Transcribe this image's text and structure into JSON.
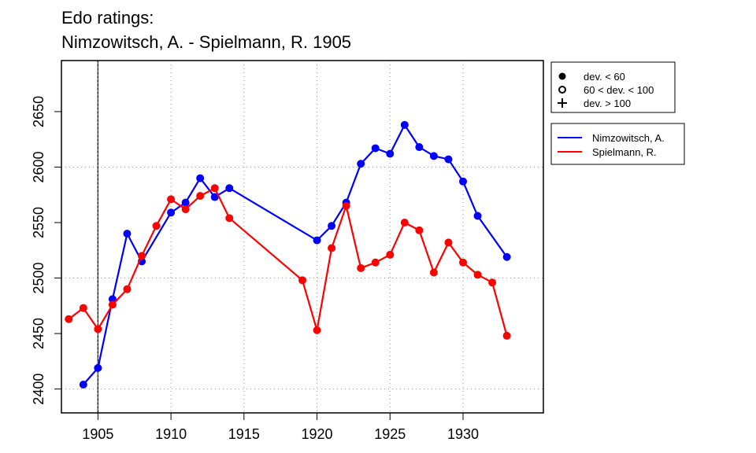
{
  "title": {
    "line1": "Edo ratings:",
    "line2": "Nimzowitsch, A. - Spielmann, R. 1905"
  },
  "colors": {
    "nimzowitsch": "#0000ff",
    "spielmann": "#ff0000",
    "grid": "#999999",
    "axis": "#000000"
  },
  "chart_data": {
    "type": "line",
    "title": "Edo ratings: Nimzowitsch, A. - Spielmann, R. 1905",
    "xlabel": "",
    "ylabel": "",
    "xlim": [
      1902.5,
      1935.5
    ],
    "ylim": [
      2378.5,
      2696
    ],
    "x_ticks": [
      1905,
      1910,
      1915,
      1920,
      1925,
      1930
    ],
    "y_ticks": [
      2400,
      2450,
      2500,
      2550,
      2600,
      2650
    ],
    "grid_x": [
      1910,
      1915,
      1920,
      1925,
      1930
    ],
    "grid_y": [
      2400,
      2500,
      2600
    ],
    "event_year": 1905,
    "series": [
      {
        "name": "Nimzowitsch, A.",
        "color": "#0000ff",
        "x": [
          1904,
          1905,
          1906,
          1907,
          1908,
          1910,
          1911,
          1912,
          1913,
          1914,
          1920,
          1921,
          1922,
          1923,
          1924,
          1925,
          1926,
          1927,
          1928,
          1929,
          1930,
          1931,
          1933
        ],
        "values": [
          2404,
          2419,
          2481,
          2540,
          2515,
          2559,
          2568,
          2590,
          2573,
          2581,
          2534,
          2547,
          2568,
          2603,
          2617,
          2612,
          2638,
          2618,
          2610,
          2607,
          2587,
          2556,
          2519
        ]
      },
      {
        "name": "Spielmann, R.",
        "color": "#ff0000",
        "x": [
          1903,
          1904,
          1905,
          1906,
          1907,
          1908,
          1909,
          1910,
          1911,
          1912,
          1913,
          1914,
          1919,
          1920,
          1921,
          1922,
          1923,
          1924,
          1925,
          1926,
          1927,
          1928,
          1929,
          1930,
          1931,
          1932,
          1933
        ],
        "values": [
          2463,
          2473,
          2454,
          2476,
          2490,
          2520,
          2547,
          2571,
          2562,
          2574,
          2581,
          2554,
          2498,
          2453,
          2527,
          2565,
          2509,
          2514,
          2521,
          2550,
          2543,
          2505,
          2532,
          2514,
          2503,
          2496,
          2448
        ]
      }
    ],
    "legend_markers": [
      {
        "symbol": "filled-circle",
        "label": "dev. < 60"
      },
      {
        "symbol": "open-circle",
        "label": "60 < dev. < 100"
      },
      {
        "symbol": "plus",
        "label": "dev. > 100"
      }
    ],
    "legend_placement": "right-outside"
  }
}
